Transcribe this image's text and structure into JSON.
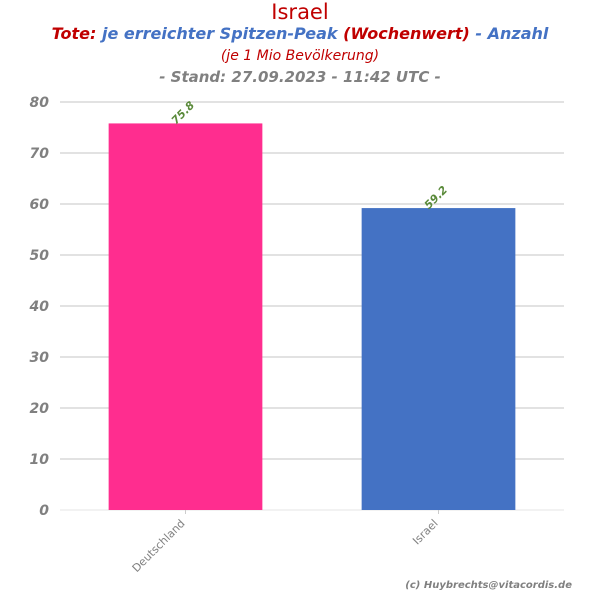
{
  "header": {
    "title": "Israel",
    "subtitle_part1": "Tote:",
    "subtitle_part2": "je erreichter Spitzen-Peak",
    "subtitle_part3": "(Wochenwert)",
    "subtitle_part4": "- Anzahl",
    "unit": "(je 1 Mio Bevölkerung)",
    "stand": "- Stand: 27.09.2023 - 11:42 UTC -"
  },
  "credit": "(c) Huybrechts@vitacordis.de",
  "colors": {
    "title_red": "#c00000",
    "subtitle_blue": "#4472c4",
    "axis_gray": "#808080",
    "grid": "#d9d9d9",
    "data_label_green": "#5a8a3a"
  },
  "chart_data": {
    "type": "bar",
    "categories": [
      "Deutschland",
      "Israel"
    ],
    "values": [
      75.8,
      59.2
    ],
    "value_labels": [
      "75.8",
      "59.2"
    ],
    "bar_colors": [
      "#ff2d8f",
      "#4472c4"
    ],
    "yticks": [
      0,
      10,
      20,
      30,
      40,
      50,
      60,
      70,
      80
    ],
    "ylim": [
      0,
      80
    ],
    "grid": true,
    "xlabel": "",
    "ylabel": ""
  }
}
